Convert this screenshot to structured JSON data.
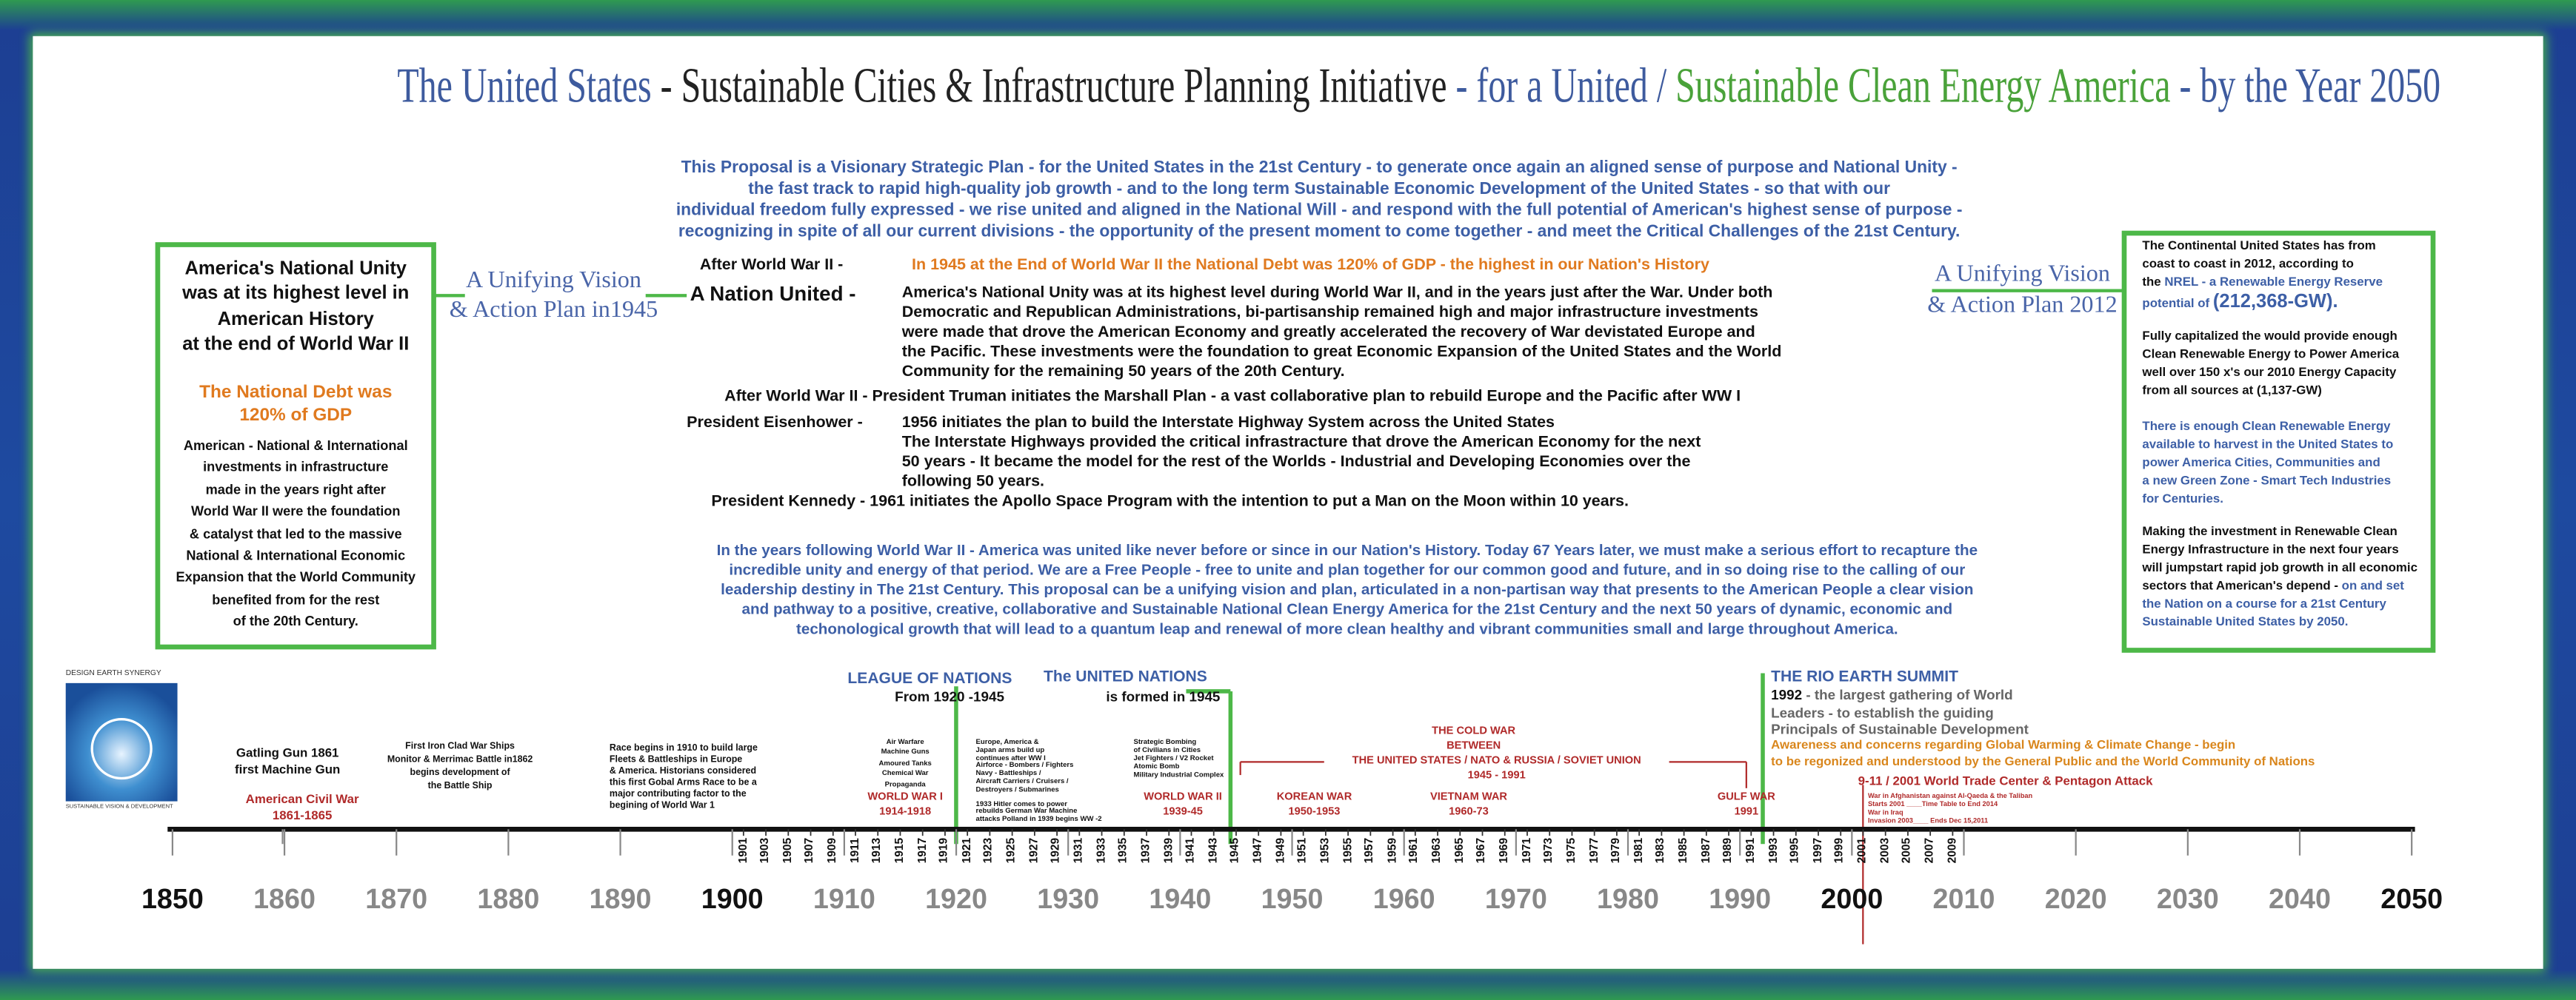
{
  "header": {
    "title": {
      "part1": "The United States",
      "part2": "- Sustainable Cities & Infrastructure Planning Initiative",
      "part3": "- for a United /",
      "part4": "Sustainable Clean Energy America",
      "part5": "- by the Year 2050"
    }
  },
  "intro": {
    "lines": [
      "This Proposal is a Visionary Strategic Plan  - for the United States in the 21st Century - to generate once again an aligned sense of purpose and  National Unity -",
      "the fast track to rapid high-quality job growth - and to the long term Sustainable Economic Development of the United States - so that with our",
      "individual freedom fully expressed - we rise united and aligned in the National Will - and respond with the full potential of American's highest sense of purpose -",
      "recognizing in spite of all our current divisions - the opportunity of the present moment to come together - and meet the Critical Challenges of the 21st Century."
    ]
  },
  "left_box": {
    "heading": [
      "America's National Unity",
      "was at its highest level in",
      "American History",
      "at the end of World War II"
    ],
    "debt": [
      "The National Debt was",
      "120% of GDP"
    ],
    "body": [
      "American - National & International",
      "investments in infrastructure",
      "made in the years right after",
      "World War II were the foundation",
      "& catalyst that led to the massive",
      "National & International Economic",
      "Expansion that the World Community",
      "benefited from  for the rest",
      "of the 20th Century."
    ]
  },
  "left_vision": {
    "lines": [
      "A Unifying Vision",
      "& Action Plan in1945"
    ]
  },
  "right_vision": {
    "lines": [
      "A Unifying Vision",
      "& Action Plan  2012"
    ]
  },
  "center": {
    "after_ww2": {
      "label": "After World War II -",
      "text": "In 1945 at the End of World War II the National Debt was 120% of GDP - the highest in our Nation's History"
    },
    "nation_united": {
      "label": "A Nation United -",
      "lines": [
        "America's National Unity was at its highest level during World War II, and in the years just after the War.  Under both",
        "Democratic and Republican Administrations, bi-partisanship remained high and major infrastructure investments",
        "were made that drove the American Economy and greatly accelerated the recovery of War devistated Europe and",
        "the Pacific.  These investments were the foundation to great Economic Expansion of the United States and the World",
        "Community for the remaining 50 years of the 20th Century."
      ]
    },
    "marshall": "After World War II - President Truman initiates the Marshall Plan - a vast collaborative plan to rebuild Europe and the Pacific after WW I",
    "eisenhower": {
      "label": "President Eisenhower -",
      "lines": [
        "1956 initiates the plan to build the Interstate Highway System across the United States",
        "The Interstate Highways provided the critical infrastracture that drove the American Economy for the next",
        "50 years - It became the model for the rest of the Worlds - Industrial and Developing Economies over the",
        "following 50 years."
      ]
    },
    "kennedy": "President Kennedy - 1961 initiates the Apollo Space Program with the intention to put a Man on the Moon within 10 years."
  },
  "closing": {
    "lines": [
      "In the years following World War II - America was united like never before or since in our Nation's History. Today 67 Years later, we must make a serious effort to recapture the",
      "incredible unity and energy of that period.  We are a Free People - free to unite and plan together for our common good and future, and in so doing rise to the calling of our",
      "leadership destiny in The 21st Century.   This proposal can be a unifying vision and plan, articulated in a non-partisan way that presents to the American People a clear vision",
      "and pathway to a positive, creative, collaborative and Sustainable National Clean Energy America for the 21st Century and the next 50 years of dynamic, economic and",
      "techonological growth that will lead to a quantum leap and renewal of more clean healthy and vibrant communities small and large throughout America."
    ]
  },
  "right_box": {
    "p1": [
      "The Continental United States has from",
      "coast to coast in 2012, according to"
    ],
    "nrel_lead": "the",
    "nrel": "NREL - a Renewable Energy Reserve",
    "potential": "potential of",
    "gw": "(212,368-GW).",
    "p2": [
      "Fully capitalized the would provide enough",
      "Clean Renewable Energy to Power America",
      "well over 150 x's our 2010 Energy Capacity",
      "from all sources at (1,137-GW)"
    ],
    "p3": [
      "There is enough Clean Renewable Energy",
      "available to harvest in the United States to",
      "power America Cities, Communities and",
      "a new Green Zone - Smart Tech Industries",
      "for Centuries."
    ],
    "p4": [
      "Making the investment in Renewable Clean",
      "Energy Infrastructure in the next four years",
      "will jumpstart rapid job growth in all economic"
    ],
    "p4_lead": "sectors that American's depend -",
    "p4_blue": "on and set",
    "p4_end": [
      "the Nation on a course for a 21st Century",
      "Sustainable United States by 2050."
    ]
  },
  "logo": {
    "top": "DESIGN EARTH SYNERGY",
    "bottom": "SUSTAINABLE VISION & DEVELOPMENT"
  },
  "timeline": {
    "decades": [
      1850,
      1860,
      1870,
      1880,
      1890,
      1900,
      1910,
      1920,
      1930,
      1940,
      1950,
      1960,
      1970,
      1980,
      1990,
      2000,
      2010,
      2020,
      2030,
      2040,
      2050
    ],
    "years": [
      1901,
      1903,
      1905,
      1907,
      1909,
      1911,
      1913,
      1915,
      1917,
      1919,
      1921,
      1923,
      1925,
      1927,
      1929,
      1931,
      1933,
      1935,
      1937,
      1939,
      1941,
      1943,
      1945,
      1947,
      1949,
      1951,
      1953,
      1955,
      1957,
      1959,
      1961,
      1963,
      1965,
      1967,
      1969,
      1971,
      1973,
      1975,
      1977,
      1979,
      1981,
      1983,
      1985,
      1987,
      1989,
      1991,
      1993,
      1995,
      1997,
      1999,
      2001,
      2003,
      2005,
      2007,
      2009
    ],
    "gatling": [
      "Gatling Gun 1861",
      "first Machine Gun"
    ],
    "civil_war": {
      "name": "American Civil War",
      "years": "1861-1865"
    },
    "ironclad": [
      "First Iron Clad War Ships",
      "Monitor & Merrimac Battle in1862",
      "begins development of",
      "the Battle Ship"
    ],
    "arms_race": [
      "Race begins in 1910 to build large",
      " Fleets & Battleships  in Europe",
      "& America.  Historians considered",
      "this first Gobal Arms Race to be a",
      "major contributing factor to the",
      "begining of World War 1"
    ],
    "ww1_tech": [
      "Air Warfare",
      "Machine Guns",
      "Amoured Tanks",
      "Chemical War",
      "Propaganda"
    ],
    "ww1": {
      "name": "WORLD WAR I",
      "years": "1914-1918"
    },
    "league": {
      "name": "LEAGUE OF NATIONS",
      "years": "From 1920 -1945"
    },
    "un": {
      "name": "The UNITED NATIONS",
      "note": "is formed in 1945"
    },
    "interwar": [
      "Europe, America &",
      "Japan arms build up",
      "continues after WW I",
      "Airforce - Bombers / Fighters",
      "Navy - Battleships /",
      "Aircraft Carriers / Cruisers /",
      "Destroyers / Submarines",
      "1933 Hitler comes to power",
      "rebuilds German War Machine",
      "attacks Polland in 1939 begins WW -2"
    ],
    "ww2_tech": [
      "Strategic Bombing",
      "of Civilians in Cities",
      "Jet Fighters / V2 Rocket",
      "Atomic Bomb",
      "Military Industrial Complex"
    ],
    "ww2": {
      "name": "WORLD WAR II",
      "years": "1939-45"
    },
    "cold_war": {
      "title": [
        "THE COLD WAR",
        "BETWEEN"
      ],
      "parties": "THE UNITED STATES / NATO & RUSSIA / SOVIET UNION",
      "years": "1945 - 1991"
    },
    "korea": {
      "name": "KOREAN WAR",
      "years": "1950-1953"
    },
    "vietnam": {
      "name": "VIETNAM WAR",
      "years": "1960-73"
    },
    "gulf": {
      "name": "GULF WAR",
      "years": "1991"
    },
    "rio": {
      "name": "THE RIO EARTH SUMMIT",
      "year": "1992",
      "lines": [
        "- the largest gathering of World",
        "Leaders - to establish the guiding",
        "Principals of Sustainable Development"
      ],
      "awareness": [
        "Awareness and concerns regarding Global Warming & Climate Change - begin",
        "to be regonized and understood by the General Public and the World Community of Nations"
      ]
    },
    "sept11": {
      "name": "9-11 / 2001 World Trade Center & Pentagon Attack",
      "lines": [
        "War in Afghanistan  against Al-Qaeda & the Taliban",
        "Starts 2001 ____Time Table to End 2014",
        "War in Iraq",
        "Invasion 2003____ Ends Dec 15,2011"
      ]
    }
  }
}
